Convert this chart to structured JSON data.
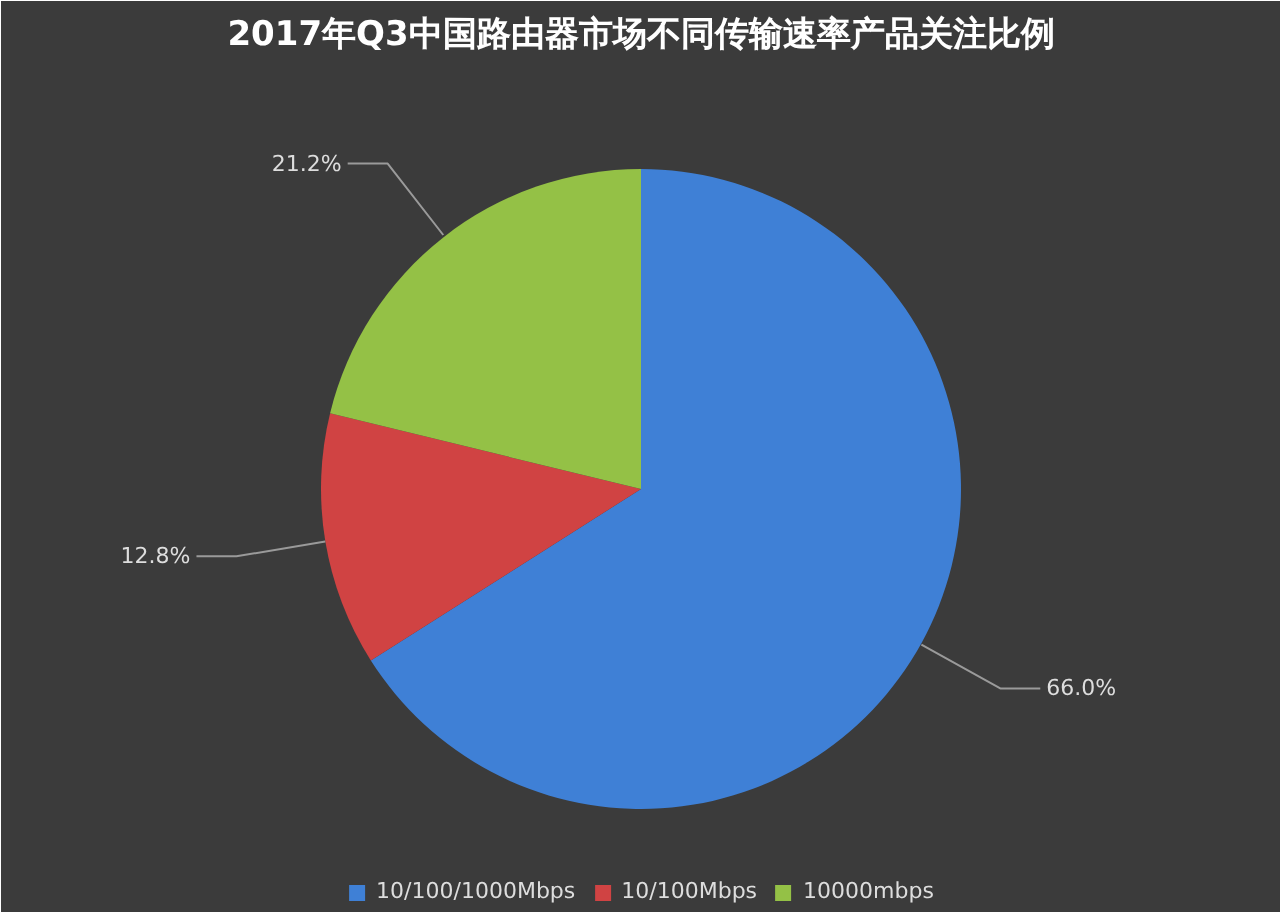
{
  "chart_data": {
    "type": "pie",
    "title": "2017年Q3中国路由器市场不同传输速率产品关注比例",
    "categories": [
      "10/100/1000Mbps",
      "10/100Mbps",
      "10000mbps"
    ],
    "values": [
      66.0,
      12.8,
      21.2
    ],
    "colors": [
      "#3f80d6",
      "#d04343",
      "#94c146"
    ],
    "value_labels": [
      "66.0%",
      "12.8%",
      "21.2%"
    ],
    "legend": "bottom"
  }
}
